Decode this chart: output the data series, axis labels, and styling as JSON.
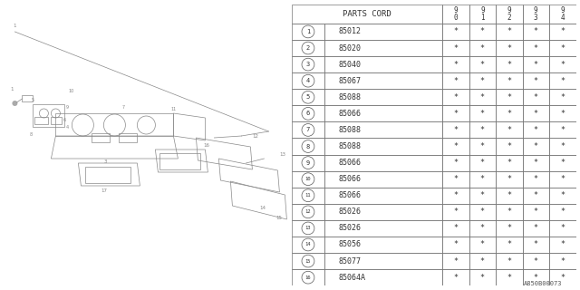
{
  "table_header": "PARTS CORD",
  "col_headers": [
    "9\n0",
    "9\n1",
    "9\n2",
    "9\n3",
    "9\n4"
  ],
  "rows": [
    {
      "num": "1",
      "code": "85012"
    },
    {
      "num": "2",
      "code": "85020"
    },
    {
      "num": "3",
      "code": "85040"
    },
    {
      "num": "4",
      "code": "85067"
    },
    {
      "num": "5",
      "code": "85088"
    },
    {
      "num": "6",
      "code": "85066"
    },
    {
      "num": "7",
      "code": "85088"
    },
    {
      "num": "8",
      "code": "85088"
    },
    {
      "num": "9",
      "code": "85066"
    },
    {
      "num": "10",
      "code": "85066"
    },
    {
      "num": "11",
      "code": "85066"
    },
    {
      "num": "12",
      "code": "85026"
    },
    {
      "num": "13",
      "code": "85026"
    },
    {
      "num": "14",
      "code": "85056"
    },
    {
      "num": "15",
      "code": "85077"
    },
    {
      "num": "16",
      "code": "85064A"
    }
  ],
  "star": "*",
  "footnote": "A850B00073",
  "bg_color": "#ffffff",
  "line_color": "#777777",
  "text_color": "#333333"
}
